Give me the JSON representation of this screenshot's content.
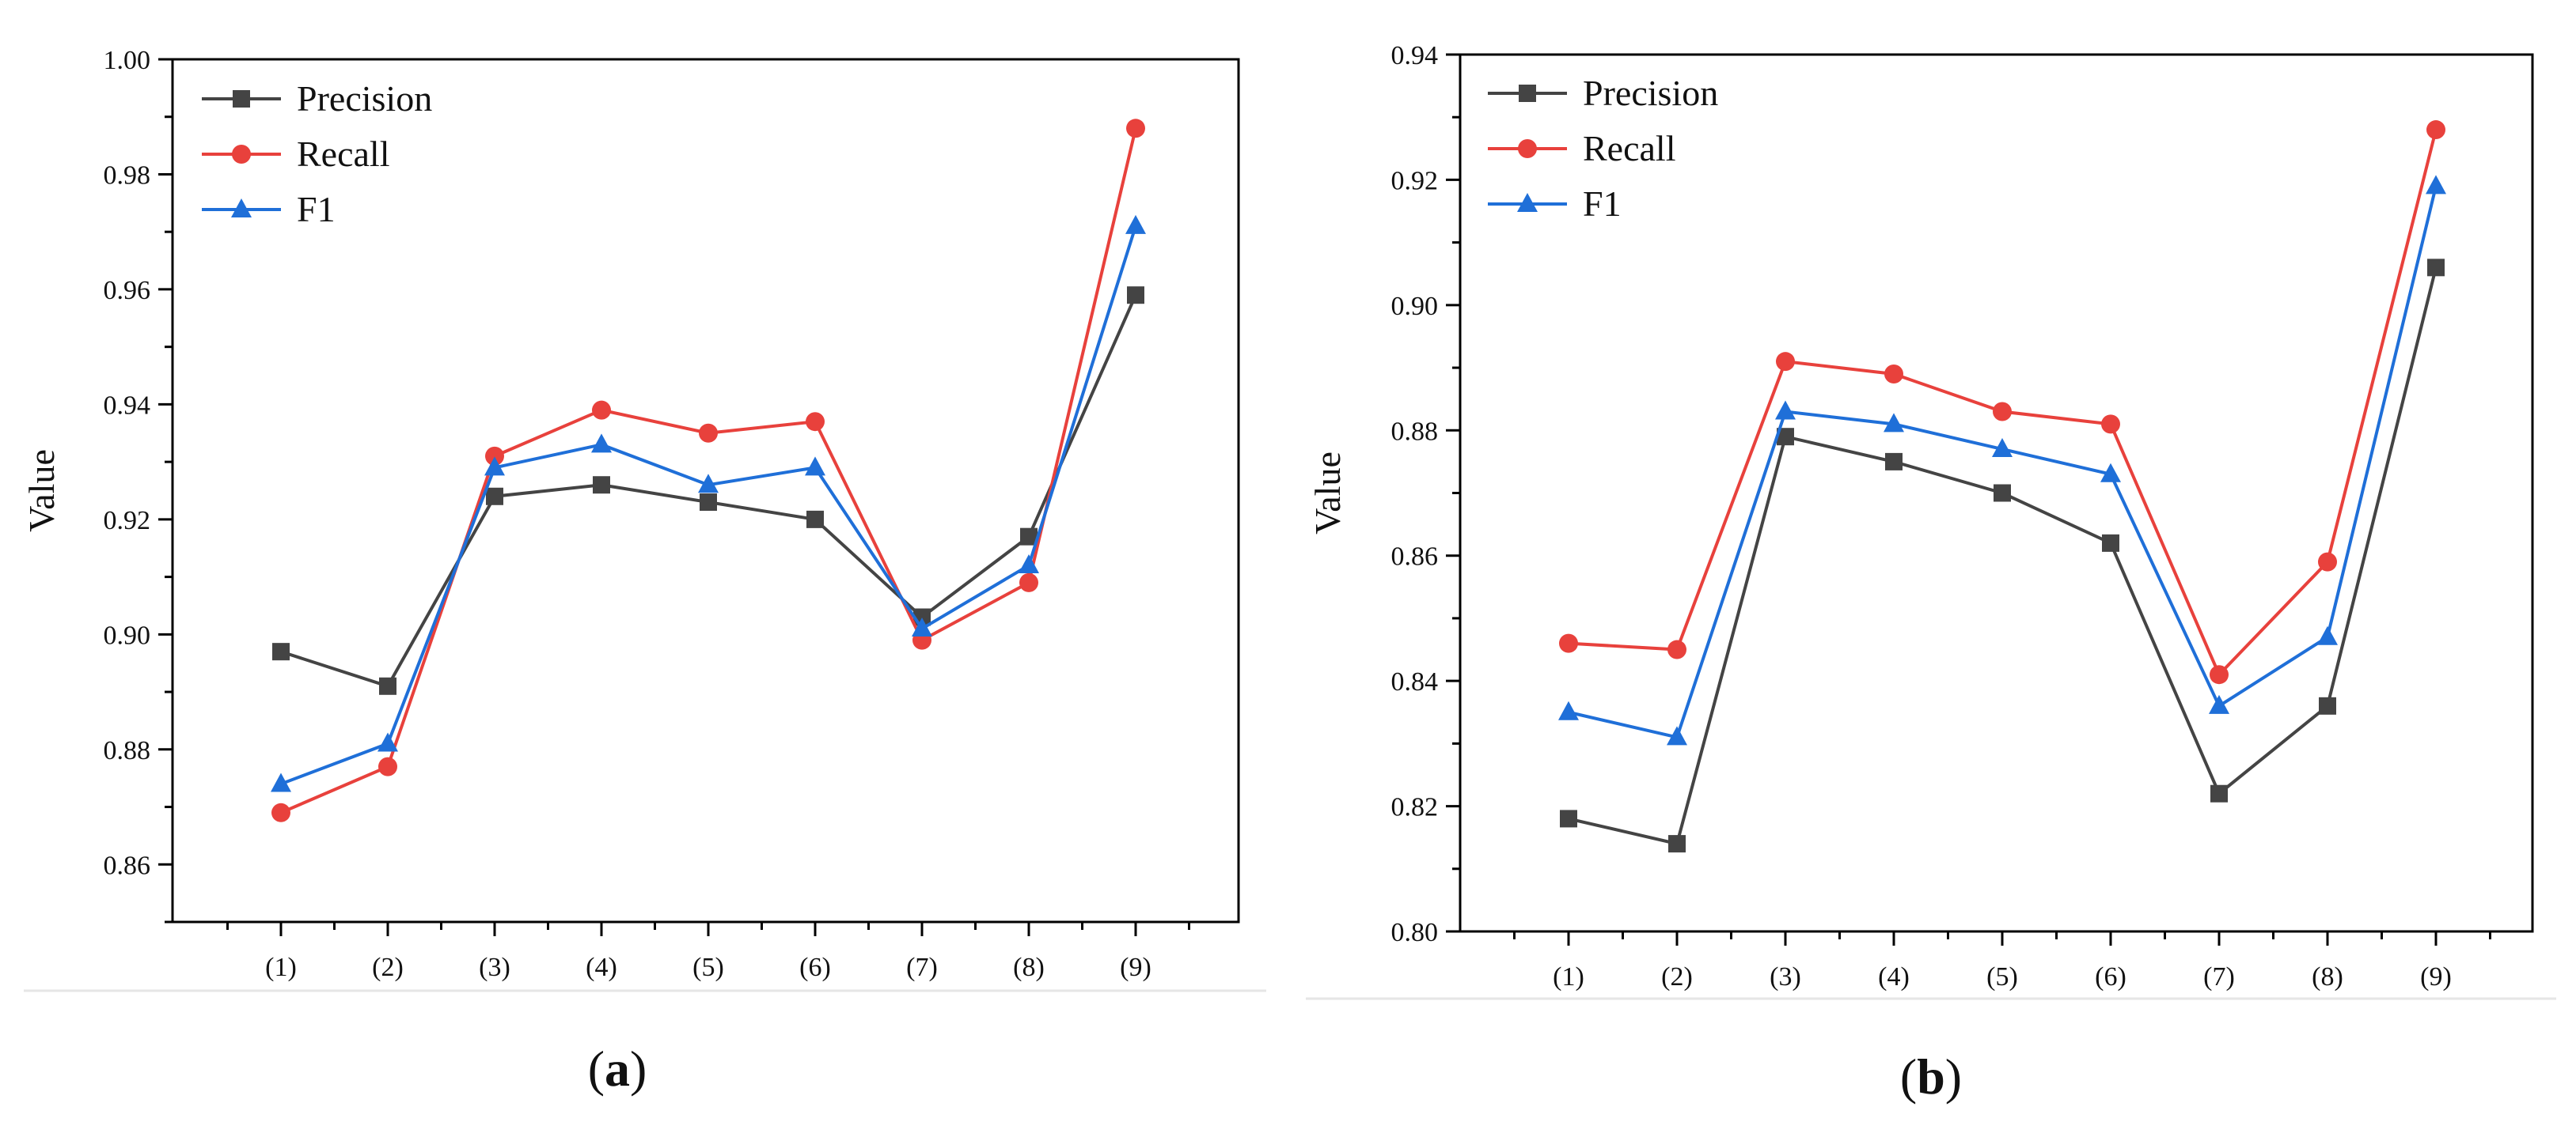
{
  "chart_data": [
    {
      "type": "line",
      "panel_label": "a",
      "categories": [
        "(1)",
        "(2)",
        "(3)",
        "(4)",
        "(5)",
        "(6)",
        "(7)",
        "(8)",
        "(9)"
      ],
      "ylabel": "Value",
      "ylim": [
        0.85,
        1.0
      ],
      "yticks": [
        0.86,
        0.88,
        0.9,
        0.92,
        0.94,
        0.96,
        0.98,
        1.0
      ],
      "ytick_labels": [
        "0.86",
        "0.88",
        "0.90",
        "0.92",
        "0.94",
        "0.96",
        "0.98",
        "1.00"
      ],
      "legend_position": "top-left",
      "series": [
        {
          "name": "Precision",
          "color": "#444444",
          "marker": "square",
          "values": [
            0.897,
            0.891,
            0.924,
            0.926,
            0.923,
            0.92,
            0.903,
            0.917,
            0.959
          ]
        },
        {
          "name": "Recall",
          "color": "#e8413c",
          "marker": "circle",
          "values": [
            0.869,
            0.877,
            0.931,
            0.939,
            0.935,
            0.937,
            0.899,
            0.909,
            0.988
          ]
        },
        {
          "name": "F1",
          "color": "#1f6fd8",
          "marker": "triangle",
          "values": [
            0.874,
            0.881,
            0.929,
            0.933,
            0.926,
            0.929,
            0.901,
            0.912,
            0.971
          ]
        }
      ]
    },
    {
      "type": "line",
      "panel_label": "b",
      "categories": [
        "(1)",
        "(2)",
        "(3)",
        "(4)",
        "(5)",
        "(6)",
        "(7)",
        "(8)",
        "(9)"
      ],
      "ylabel": "Value",
      "ylim": [
        0.8,
        0.94
      ],
      "yticks": [
        0.8,
        0.82,
        0.84,
        0.86,
        0.88,
        0.9,
        0.92,
        0.94
      ],
      "ytick_labels": [
        "0.80",
        "0.82",
        "0.84",
        "0.86",
        "0.88",
        "0.90",
        "0.92",
        "0.94"
      ],
      "legend_position": "top-left",
      "series": [
        {
          "name": "Precision",
          "color": "#444444",
          "marker": "square",
          "values": [
            0.818,
            0.814,
            0.879,
            0.875,
            0.87,
            0.862,
            0.822,
            0.836,
            0.906
          ]
        },
        {
          "name": "Recall",
          "color": "#e8413c",
          "marker": "circle",
          "values": [
            0.846,
            0.845,
            0.891,
            0.889,
            0.883,
            0.881,
            0.841,
            0.859,
            0.928
          ]
        },
        {
          "name": "F1",
          "color": "#1f6fd8",
          "marker": "triangle",
          "values": [
            0.835,
            0.831,
            0.883,
            0.881,
            0.877,
            0.873,
            0.836,
            0.847,
            0.919
          ]
        }
      ]
    }
  ]
}
